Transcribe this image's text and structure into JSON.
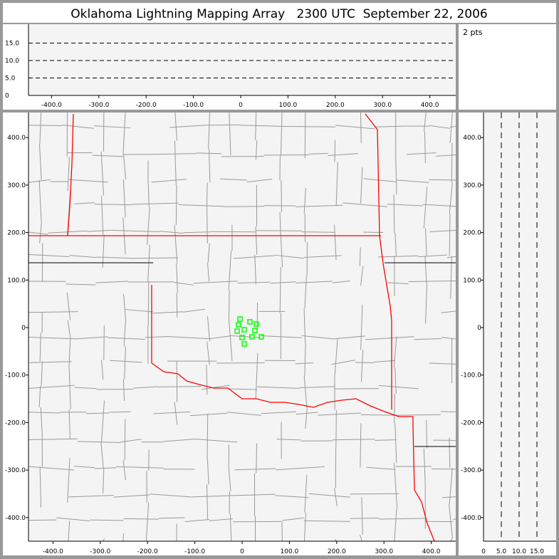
{
  "title": "Oklahoma Lightning Mapping Array   2300 UTC  September 22, 2006",
  "points_label": "2 pts",
  "colors": {
    "background": "#999999",
    "plot_bg": "#f4f4f4",
    "state_border": "#ff0000",
    "county_border": "#999999",
    "station_marker": "#00ff00"
  },
  "chart_data": [
    {
      "type": "scatter",
      "panel": "altitude-vs-east-west",
      "x_ticks": [
        "-400.0",
        "-300.0",
        "-200.0",
        "-100.0",
        "0",
        "100.0",
        "200.0",
        "300.0",
        "400.0"
      ],
      "x_tick_values": [
        -400,
        -300,
        -200,
        -100,
        0,
        100,
        200,
        300,
        400
      ],
      "y_ticks": [
        "0",
        "5.0",
        "10.0",
        "15.0"
      ],
      "y_tick_values": [
        0,
        5,
        10,
        15
      ],
      "xlim": [
        -450,
        450
      ],
      "ylim": [
        0,
        20
      ],
      "grid": "dashed at 5, 10, 15"
    },
    {
      "type": "scatter",
      "panel": "plan-view-map",
      "x_ticks": [
        "-400.0",
        "-300.0",
        "-200.0",
        "-100.0",
        "0",
        "100.0",
        "200.0",
        "300.0",
        "400.0"
      ],
      "x_tick_values": [
        -400,
        -300,
        -200,
        -100,
        0,
        100,
        200,
        300,
        400
      ],
      "y_ticks": [
        "400.0",
        "300.0",
        "200.0",
        "100.0",
        "0",
        "-100.0",
        "-200.0",
        "-300.0",
        "-400.0"
      ],
      "y_tick_values": [
        400,
        300,
        200,
        100,
        0,
        -100,
        -200,
        -300,
        -400
      ],
      "xlim": [
        -450,
        450
      ],
      "ylim": [
        -450,
        450
      ],
      "stations": [
        [
          -4.5,
          18
        ],
        [
          16.6,
          12
        ],
        [
          30,
          7.5
        ],
        [
          -7.5,
          6
        ],
        [
          -10.5,
          -7.5
        ],
        [
          4.5,
          -4.5
        ],
        [
          27,
          -6
        ],
        [
          0,
          -21
        ],
        [
          21,
          -19.5
        ],
        [
          40.6,
          -19.5
        ],
        [
          4.5,
          -34.5
        ]
      ]
    },
    {
      "type": "scatter",
      "panel": "north-south-vs-altitude",
      "x_ticks": [
        "0",
        "5.0",
        "10.0",
        "15.0"
      ],
      "x_tick_values": [
        0,
        5,
        10,
        15
      ],
      "y_ticks": [
        "400.0",
        "300.0",
        "200.0",
        "100.0",
        "0",
        "-100.0",
        "-200.0",
        "-300.0",
        "-400.0"
      ],
      "y_tick_values": [
        400,
        300,
        200,
        100,
        0,
        -100,
        -200,
        -300,
        -400
      ],
      "xlim": [
        0,
        20
      ],
      "ylim": [
        -450,
        450
      ],
      "grid": "dashed at 5, 10, 15"
    }
  ]
}
